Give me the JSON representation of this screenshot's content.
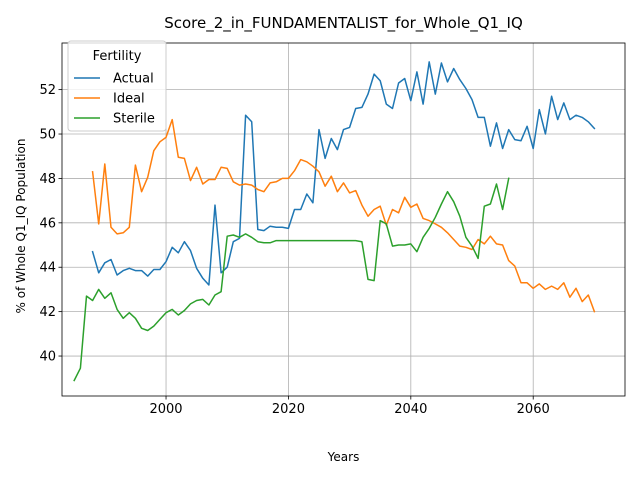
{
  "chart_data": {
    "type": "line",
    "title": "Score_2_in_FUNDAMENTALIST_for_Whole_Q1_IQ",
    "xlabel": "Years",
    "ylabel": "% of Whole Q1_IQ Population",
    "xlim": [
      1983,
      2075
    ],
    "ylim": [
      38.2,
      54.1
    ],
    "xticks": [
      2000,
      2020,
      2040,
      2060
    ],
    "yticks": [
      40,
      42,
      44,
      46,
      48,
      50,
      52
    ],
    "grid": true,
    "legend": {
      "title": "Fertility",
      "placement": "top-left"
    },
    "series": [
      {
        "name": "Actual",
        "color": "#1f77b4",
        "x": [
          1988,
          1989,
          1990,
          1991,
          1992,
          1993,
          1994,
          1995,
          1996,
          1997,
          1998,
          1999,
          2000,
          2001,
          2002,
          2003,
          2004,
          2005,
          2006,
          2007,
          2008,
          2009,
          2010,
          2011,
          2012,
          2013,
          2014,
          2015,
          2016,
          2017,
          2018,
          2019,
          2020,
          2021,
          2022,
          2023,
          2024,
          2025,
          2026,
          2027,
          2028,
          2029,
          2030,
          2031,
          2032,
          2033,
          2034,
          2035,
          2036,
          2037,
          2038,
          2039,
          2040,
          2041,
          2042,
          2043,
          2044,
          2045,
          2046,
          2047,
          2048,
          2049,
          2050,
          2051,
          2052,
          2053,
          2054,
          2055,
          2056,
          2057,
          2058,
          2059,
          2060,
          2061,
          2062,
          2063,
          2064,
          2065,
          2066,
          2067,
          2068,
          2069,
          2070
        ],
        "values": [
          44.7,
          43.75,
          44.2,
          44.35,
          43.65,
          43.85,
          43.95,
          43.85,
          43.85,
          43.6,
          43.9,
          43.9,
          44.25,
          44.9,
          44.65,
          45.15,
          44.75,
          43.95,
          43.5,
          43.2,
          46.8,
          43.75,
          44.0,
          45.15,
          45.3,
          50.85,
          50.55,
          45.7,
          45.65,
          45.85,
          45.8,
          45.8,
          45.75,
          46.6,
          46.6,
          47.3,
          46.9,
          50.2,
          48.9,
          49.8,
          49.3,
          50.2,
          50.3,
          51.15,
          51.2,
          51.8,
          52.7,
          52.4,
          51.35,
          51.15,
          52.3,
          52.5,
          51.5,
          52.8,
          51.35,
          53.25,
          51.8,
          53.2,
          52.35,
          52.95,
          52.45,
          52.05,
          51.55,
          50.75,
          50.75,
          49.45,
          50.5,
          49.35,
          50.2,
          49.75,
          49.7,
          50.35,
          49.35,
          51.1,
          50.0,
          51.7,
          50.65,
          51.4,
          50.65,
          50.85,
          50.75,
          50.55,
          50.25
        ]
      },
      {
        "name": "Ideal",
        "color": "#ff7f0e",
        "x": [
          1988,
          1989,
          1990,
          1991,
          1992,
          1993,
          1994,
          1995,
          1996,
          1997,
          1998,
          1999,
          2000,
          2001,
          2002,
          2003,
          2004,
          2005,
          2006,
          2007,
          2008,
          2009,
          2010,
          2011,
          2012,
          2013,
          2014,
          2015,
          2016,
          2017,
          2018,
          2019,
          2020,
          2021,
          2022,
          2023,
          2024,
          2025,
          2026,
          2027,
          2028,
          2029,
          2030,
          2031,
          2032,
          2033,
          2034,
          2035,
          2036,
          2037,
          2038,
          2039,
          2040,
          2041,
          2042,
          2043,
          2044,
          2045,
          2046,
          2047,
          2048,
          2049,
          2050,
          2051,
          2052,
          2053,
          2054,
          2055,
          2056,
          2057,
          2058,
          2059,
          2060,
          2061,
          2062,
          2063,
          2064,
          2065,
          2066,
          2067,
          2068,
          2069,
          2070
        ],
        "values": [
          48.3,
          45.95,
          48.65,
          45.8,
          45.5,
          45.55,
          45.8,
          48.6,
          47.4,
          48.05,
          49.25,
          49.65,
          49.85,
          50.65,
          48.95,
          48.9,
          47.9,
          48.5,
          47.75,
          47.95,
          47.95,
          48.5,
          48.45,
          47.85,
          47.7,
          47.75,
          47.7,
          47.5,
          47.4,
          47.8,
          47.85,
          48.0,
          48.0,
          48.35,
          48.85,
          48.75,
          48.55,
          48.3,
          47.65,
          48.1,
          47.4,
          47.8,
          47.35,
          47.45,
          46.8,
          46.3,
          46.6,
          46.75,
          45.9,
          46.6,
          46.45,
          47.15,
          46.7,
          46.85,
          46.2,
          46.1,
          45.95,
          45.8,
          45.55,
          45.25,
          44.95,
          44.9,
          44.8,
          45.25,
          45.05,
          45.4,
          45.05,
          45.0,
          44.3,
          44.05,
          43.3,
          43.3,
          43.05,
          43.25,
          43.0,
          43.15,
          43.0,
          43.3,
          42.65,
          43.05,
          42.45,
          42.75,
          42.0
        ]
      },
      {
        "name": "Sterile",
        "color": "#2ca02c",
        "x": [
          1985,
          1986,
          1987,
          1988,
          1989,
          1990,
          1991,
          1992,
          1993,
          1994,
          1995,
          1996,
          1997,
          1998,
          1999,
          2000,
          2001,
          2002,
          2003,
          2004,
          2005,
          2006,
          2007,
          2008,
          2009,
          2010,
          2011,
          2012,
          2013,
          2014,
          2015,
          2016,
          2017,
          2018,
          2019,
          2020,
          2021,
          2022,
          2023,
          2024,
          2025,
          2026,
          2027,
          2028,
          2029,
          2030,
          2031,
          2032,
          2033,
          2034,
          2035,
          2036,
          2037,
          2038,
          2039,
          2040,
          2041,
          2042,
          2043,
          2044,
          2045,
          2046,
          2047,
          2048,
          2049,
          2050,
          2051,
          2052,
          2053,
          2054,
          2055,
          2056
        ],
        "values": [
          38.9,
          39.45,
          42.7,
          42.5,
          43.0,
          42.6,
          42.85,
          42.1,
          41.7,
          41.95,
          41.7,
          41.25,
          41.15,
          41.35,
          41.65,
          41.95,
          42.1,
          41.85,
          42.05,
          42.35,
          42.5,
          42.55,
          42.3,
          42.75,
          42.9,
          45.4,
          45.45,
          45.35,
          45.5,
          45.35,
          45.15,
          45.1,
          45.1,
          45.2,
          45.2,
          45.2,
          45.2,
          45.2,
          45.2,
          45.2,
          45.2,
          45.2,
          45.2,
          45.2,
          45.2,
          45.2,
          45.2,
          45.15,
          43.45,
          43.4,
          46.1,
          45.95,
          44.95,
          45.0,
          45.0,
          45.05,
          44.7,
          45.35,
          45.75,
          46.25,
          46.85,
          47.4,
          46.95,
          46.3,
          45.35,
          44.95,
          44.4,
          46.75,
          46.85,
          47.75,
          46.6,
          48.0
        ]
      }
    ]
  }
}
